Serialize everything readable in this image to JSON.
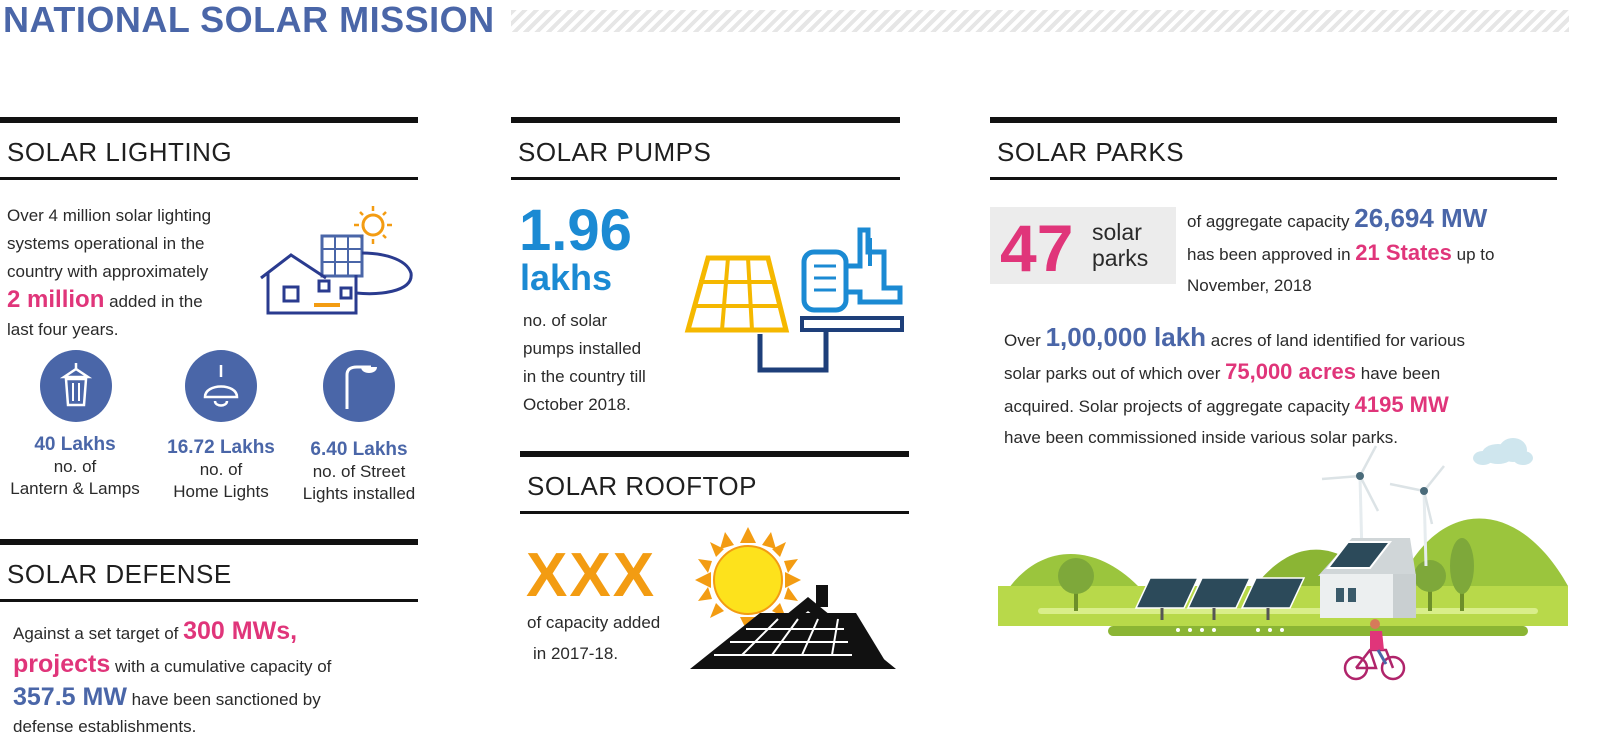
{
  "header": {
    "title": "NATIONAL SOLAR MISSION"
  },
  "lighting": {
    "title": "SOLAR LIGHTING",
    "line1": "Over 4 million solar lighting",
    "line2": "systems operational in the",
    "line3": "country with approximately",
    "highlight": "2 million",
    "line4_rest": "added in the",
    "line5": "last four years.",
    "stats": [
      {
        "value": "40 Lakhs",
        "label1": "no. of",
        "label2": "Lantern & Lamps",
        "icon": "lantern-icon"
      },
      {
        "value": "16.72 Lakhs",
        "label1": "no. of",
        "label2": "Home Lights",
        "icon": "pendant-lamp-icon"
      },
      {
        "value": "6.40 Lakhs",
        "label1": "no. of Street",
        "label2": "Lights installed",
        "icon": "street-light-icon"
      }
    ]
  },
  "defense": {
    "title": "SOLAR DEFENSE",
    "pre": "Against a set target of",
    "target": "300 MWs,",
    "projects": "projects",
    "mid": "with a cumulative capacity of",
    "capacity": "357.5 MW",
    "post": "have been sanctioned by",
    "last": "defense establishments."
  },
  "pumps": {
    "title": "SOLAR PUMPS",
    "value": "1.96",
    "unit": "lakhs",
    "line1": "no. of solar",
    "line2": "pumps installed",
    "line3": "in the country till",
    "line4": "October 2018."
  },
  "rooftop": {
    "title": "SOLAR ROOFTOP",
    "value": "XXX",
    "line1": "of capacity added",
    "line2": "in 2017-18."
  },
  "parks": {
    "title": "SOLAR PARKS",
    "count": "47",
    "count_word1": "solar",
    "count_word2": "parks",
    "p1_pre": "of aggregate capacity",
    "p1_capacity": "26,694 MW",
    "p1_mid": "has been approved in",
    "p1_states": "21 States",
    "p1_post": "up to",
    "p1_last": "November, 2018",
    "p2_pre": "Over",
    "p2_acres": "1,00,000 lakh",
    "p2_mid": "acres of land identified for various",
    "p2_l2": "solar parks out of which over",
    "p2_acquired": "75,000 acres",
    "p2_l2_post": "have been",
    "p2_l3": "acquired. Solar projects of aggregate capacity",
    "p2_mw": "4195 MW",
    "p2_l4": "have been commissioned inside various solar parks."
  },
  "colors": {
    "brand_blue": "#4a66a8",
    "pink": "#e0357a",
    "pump_blue": "#1b8ad3",
    "orange": "#f39c12",
    "green": "#9bc53d"
  }
}
